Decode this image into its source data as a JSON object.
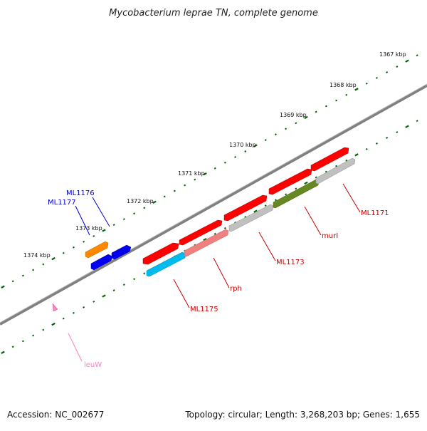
{
  "title": "Mycobacterium leprae TN, complete genome",
  "footer": {
    "accession": "Accession: NC_002677",
    "topology": "Topology: circular; Length: 3,268,203 bp; Genes: 1,655"
  },
  "ruler_labels": [
    "1367 kbp",
    "1368 kbp",
    "1369 kbp",
    "1370 kbp",
    "1371 kbp",
    "1372 kbp",
    "1373 kbp",
    "1374 kbp"
  ],
  "genes": [
    {
      "name": "ML1171",
      "color": "#cc0000"
    },
    {
      "name": "murI",
      "color": "#cc0000"
    },
    {
      "name": "ML1173",
      "color": "#cc0000"
    },
    {
      "name": "rph",
      "color": "#cc0000"
    },
    {
      "name": "ML1175",
      "color": "#cc0000"
    },
    {
      "name": "ML1176",
      "color": "#0000cc"
    },
    {
      "name": "ML1177",
      "color": "#0000cc"
    },
    {
      "name": "leuW",
      "color": "#ff80c0"
    }
  ],
  "colors": {
    "backbone": "#808080",
    "tick": "#006600",
    "red_gene": "#ff0000",
    "blue_gene": "#0000ee",
    "orange_gene": "#ff8800",
    "cyan_gene": "#00bbee",
    "pink_gene": "#f08080",
    "olive_gene": "#668822",
    "gray_gene": "#c0c0c0"
  }
}
